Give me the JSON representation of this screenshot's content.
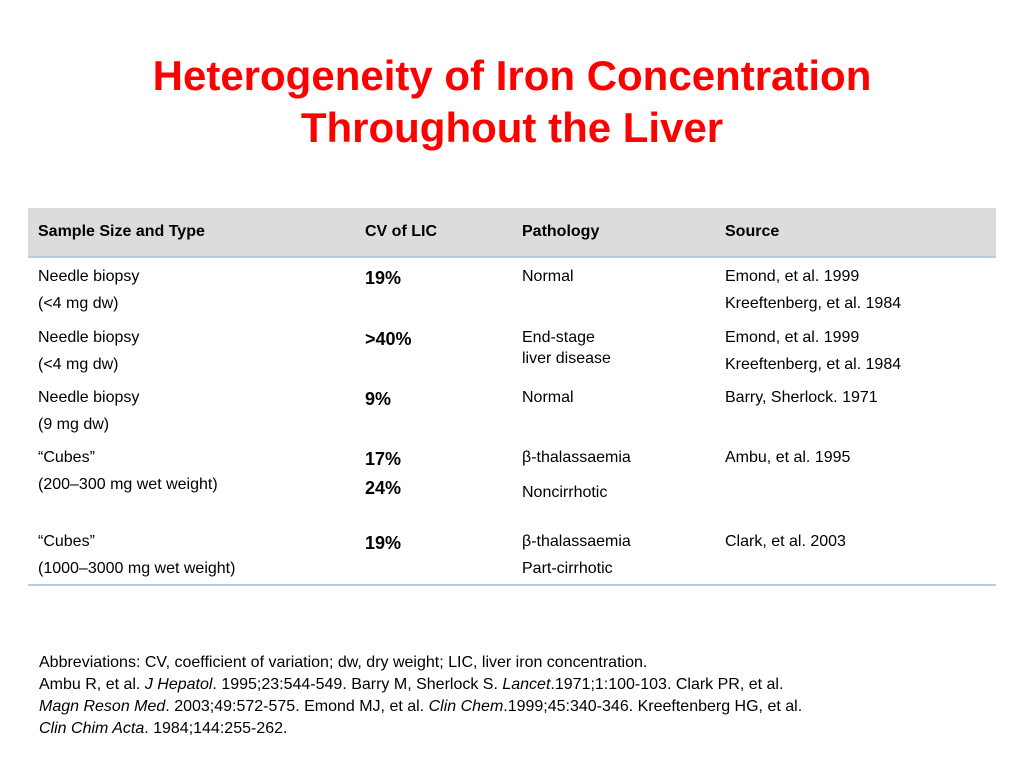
{
  "title": {
    "line1": "Heterogeneity of Iron Concentration",
    "line2": "Throughout the Liver"
  },
  "colors": {
    "title": "#ff0000",
    "header_bg": "#dcdcdc",
    "rule": "#b9c9dc"
  },
  "table": {
    "headers": [
      "Sample Size and Type",
      "CV of LIC",
      "Pathology",
      "Source"
    ],
    "rows": [
      {
        "sample": [
          "Needle biopsy",
          "(<4 mg dw)"
        ],
        "cv": [
          "19%"
        ],
        "pathology": [
          "Normal"
        ],
        "source": [
          "Emond, et al. 1999",
          "Kreeftenberg, et al. 1984"
        ]
      },
      {
        "sample": [
          "Needle biopsy",
          "(<4 mg dw)"
        ],
        "cv": [
          ">40%"
        ],
        "pathology": [
          "End-stage",
          "liver disease"
        ],
        "source": [
          "Emond, et al. 1999",
          "Kreeftenberg, et al. 1984"
        ]
      },
      {
        "sample": [
          "Needle biopsy",
          "(9 mg dw)"
        ],
        "cv": [
          "9%"
        ],
        "pathology": [
          "Normal"
        ],
        "source": [
          "Barry, Sherlock. 1971"
        ]
      },
      {
        "sample": [
          "“Cubes”",
          "(200–300 mg wet weight)"
        ],
        "cv": [
          "17%",
          "24%"
        ],
        "pathology": [
          "β-thalassaemia",
          "Noncirrhotic"
        ],
        "source": [
          "Ambu, et al. 1995"
        ]
      },
      {
        "sample": [
          "“Cubes”",
          "(1000–3000 mg wet weight)"
        ],
        "cv": [
          "19%"
        ],
        "pathology": [
          "β-thalassaemia",
          "Part-cirrhotic"
        ],
        "source": [
          "Clark, et al. 2003"
        ]
      }
    ]
  },
  "footer": {
    "abbreviations": "Abbreviations: CV, coefficient of variation; dw, dry weight; LIC, liver iron concentration.",
    "refs": {
      "r1a": "Ambu R, et al. ",
      "r1j": "J Hepatol",
      "r1b": ". 1995;23:544-549. Barry M, Sherlock S. ",
      "r2j": "Lancet",
      "r2b": ".1971;1:100-103. Clark PR, et al.",
      "r3j": "Magn Reson Med",
      "r3b": ". 2003;49:572-575. Emond MJ, et al. ",
      "r4j": "Clin Chem",
      "r4b": ".1999;45:340-346. Kreeftenberg HG, et al.",
      "r5j": "Clin Chim Acta",
      "r5b": ". 1984;144:255-262."
    }
  }
}
